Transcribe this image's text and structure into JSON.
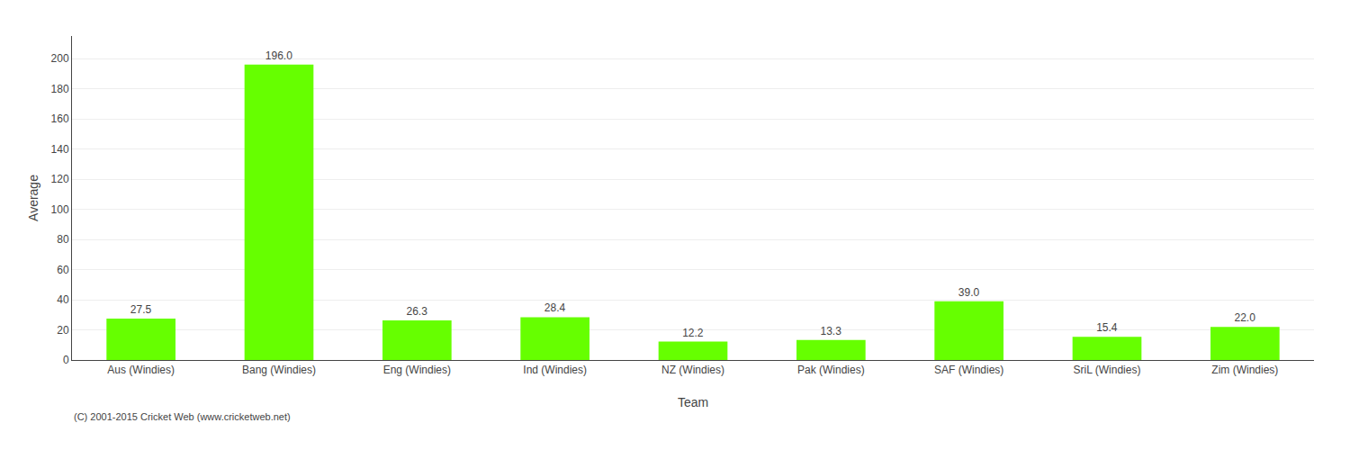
{
  "chart_data": {
    "type": "bar",
    "xlabel": "Team",
    "ylabel": "Average",
    "categories": [
      "Aus (Windies)",
      "Bang (Windies)",
      "Eng (Windies)",
      "Ind (Windies)",
      "NZ (Windies)",
      "Pak (Windies)",
      "SAF (Windies)",
      "SriL (Windies)",
      "Zim (Windies)"
    ],
    "values": [
      27.5,
      196.0,
      26.3,
      28.4,
      12.2,
      13.3,
      39.0,
      15.4,
      22.0
    ],
    "value_labels": [
      "27.5",
      "196.0",
      "26.3",
      "28.4",
      "12.2",
      "13.3",
      "39.0",
      "15.4",
      "22.0"
    ],
    "data_labels": true,
    "color": "#66ff00",
    "ylim": [
      0,
      215
    ],
    "yticks": [
      0,
      20,
      40,
      60,
      80,
      100,
      120,
      140,
      160,
      180,
      200
    ],
    "grid": true,
    "annotations": [
      "(C) 2001-2015 Cricket Web (www.cricketweb.net)"
    ]
  }
}
